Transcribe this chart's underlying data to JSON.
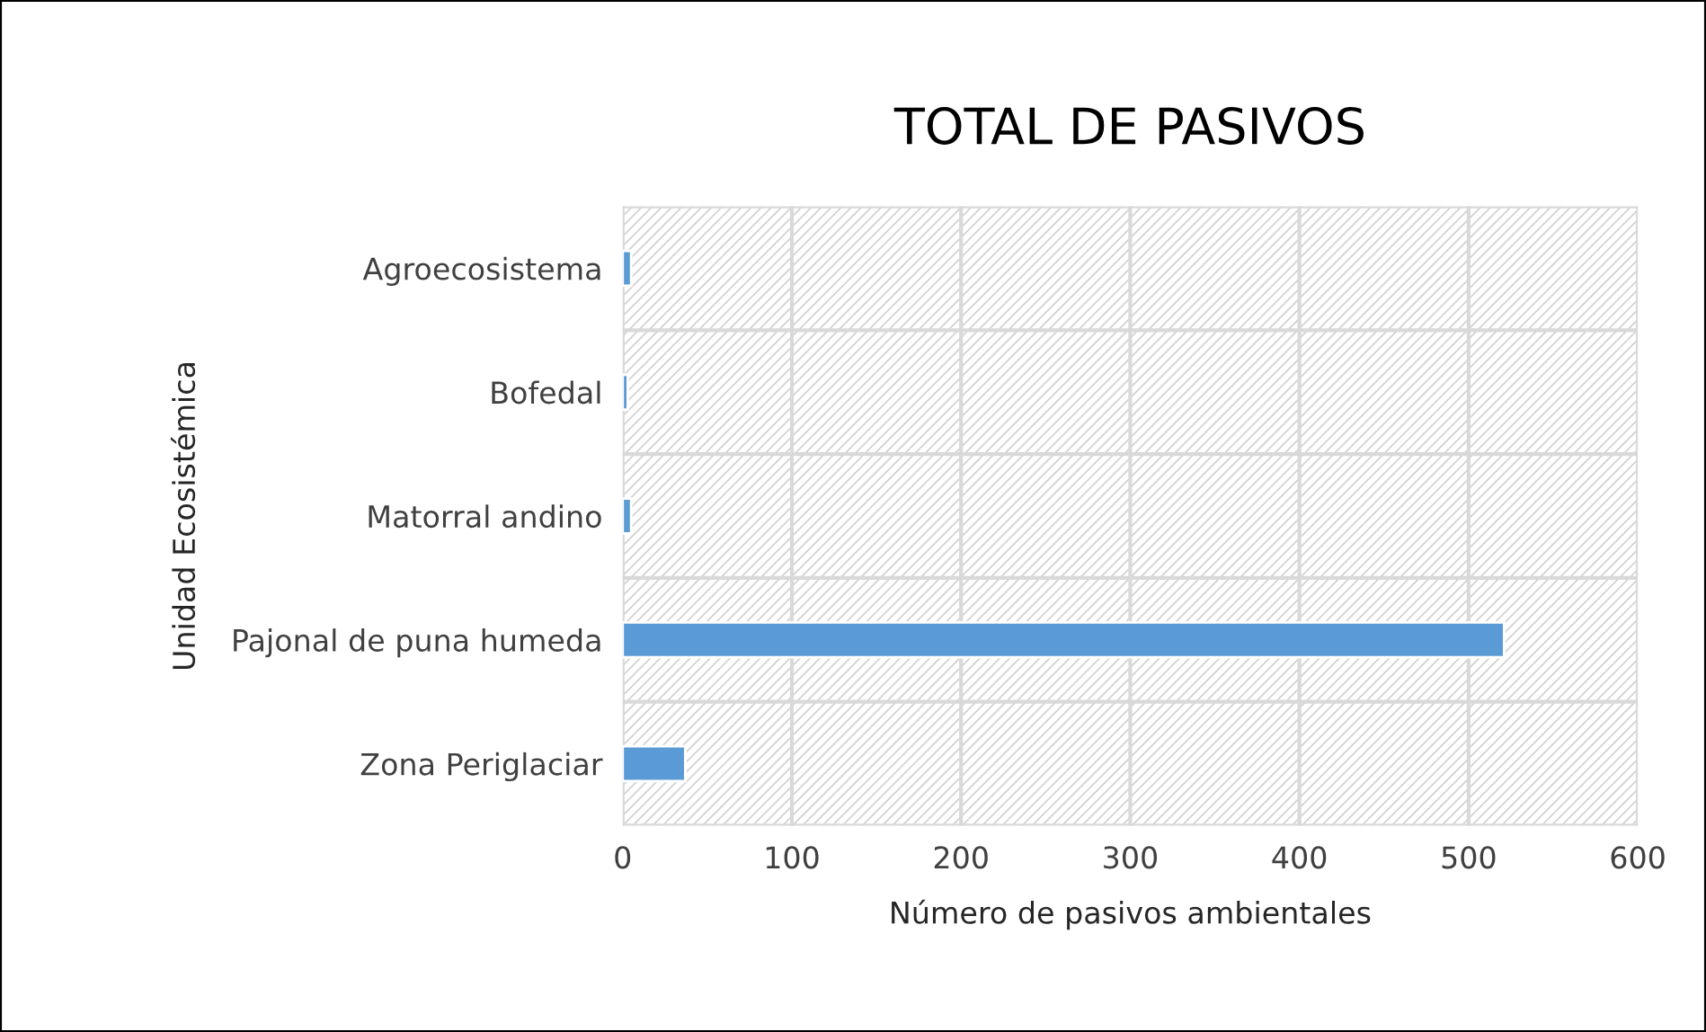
{
  "chart_data": {
    "type": "bar",
    "orientation": "horizontal",
    "title": "TOTAL DE PASIVOS",
    "xlabel": "Número de pasivos ambientales",
    "ylabel": "Unidad Ecosistémica",
    "categories": [
      "Agroecosistema",
      "Bofedal",
      "Matorral andino",
      "Pajonal de puna humeda",
      "Zona Periglaciar"
    ],
    "values": [
      5,
      3,
      5,
      521,
      37
    ],
    "color": "#5b9bd5",
    "xlim": [
      0,
      600
    ],
    "xticks": [
      0,
      100,
      200,
      300,
      400,
      500,
      600
    ],
    "grid": true
  }
}
